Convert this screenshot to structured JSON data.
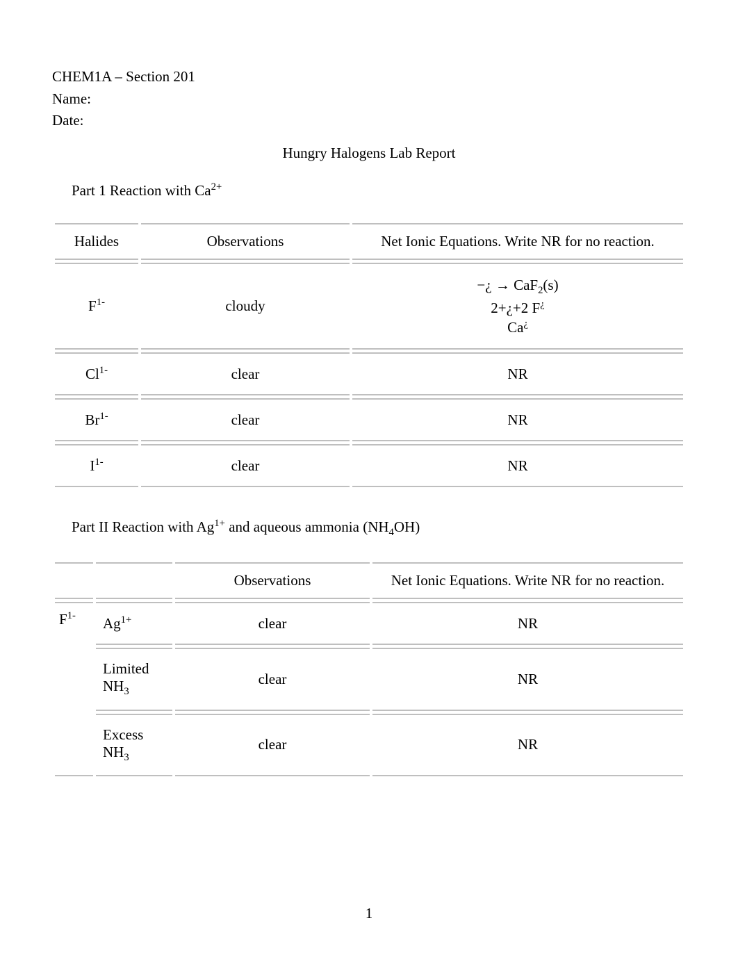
{
  "header": {
    "course": "CHEM1A – Section 201",
    "name_label": "Name:",
    "date_label": "Date:"
  },
  "title": "Hungry Halogens Lab Report",
  "part1": {
    "heading_prefix": "Part 1 Reaction with Ca",
    "heading_sup": "2+",
    "columns": {
      "halides": "Halides",
      "observations": "Observations",
      "equations": "Net Ionic Equations.  Write NR for no reaction."
    },
    "rows": [
      {
        "halide_base": "F",
        "halide_sup": "1-",
        "observation": "cloudy",
        "equation": {
          "line1_a": "−",
          "line1_i": "¿",
          "line1_b": " → CaF",
          "line1_sub": "2",
          "line1_c": "(s)",
          "line2_a": "2+",
          "line2_i": "¿",
          "line2_b": "+2 F",
          "line2_sup": "¿",
          "line3_a": "Ca",
          "line3_sup": "¿"
        }
      },
      {
        "halide_base": "Cl",
        "halide_sup": "1-",
        "observation": "clear",
        "equation_text": "NR"
      },
      {
        "halide_base": "Br",
        "halide_sup": "1-",
        "observation": "clear",
        "equation_text": "NR"
      },
      {
        "halide_base": "I",
        "halide_sup": "1-",
        "observation": "clear",
        "equation_text": "NR"
      }
    ]
  },
  "part2": {
    "heading_prefix": "Part II    Reaction with Ag",
    "heading_sup": "1+",
    "heading_mid": " and aqueous ammonia (NH",
    "heading_sub": "4",
    "heading_suffix": "OH)",
    "columns": {
      "observations": "Observations",
      "equations": "Net Ionic Equations.  Write NR for no reaction."
    },
    "group_label_base": "F",
    "group_label_sup": "1-",
    "rows": [
      {
        "reagent_base": "Ag",
        "reagent_sup": "1+",
        "observation": "clear",
        "equation_text": "NR"
      },
      {
        "reagent_line1": "Limited",
        "reagent_line2_base": "NH",
        "reagent_line2_sub": "3",
        "observation": "clear",
        "equation_text": "NR"
      },
      {
        "reagent_line1": "Excess",
        "reagent_line2_base": "NH",
        "reagent_line2_sub": "3",
        "observation": "clear",
        "equation_text": "NR"
      }
    ]
  },
  "page_number": "1",
  "colors": {
    "text": "#000000",
    "background": "#ffffff",
    "border": "#bfbfbf"
  },
  "typography": {
    "family": "Times New Roman",
    "body_size_pt": 16,
    "superscript_scale": 0.7
  }
}
